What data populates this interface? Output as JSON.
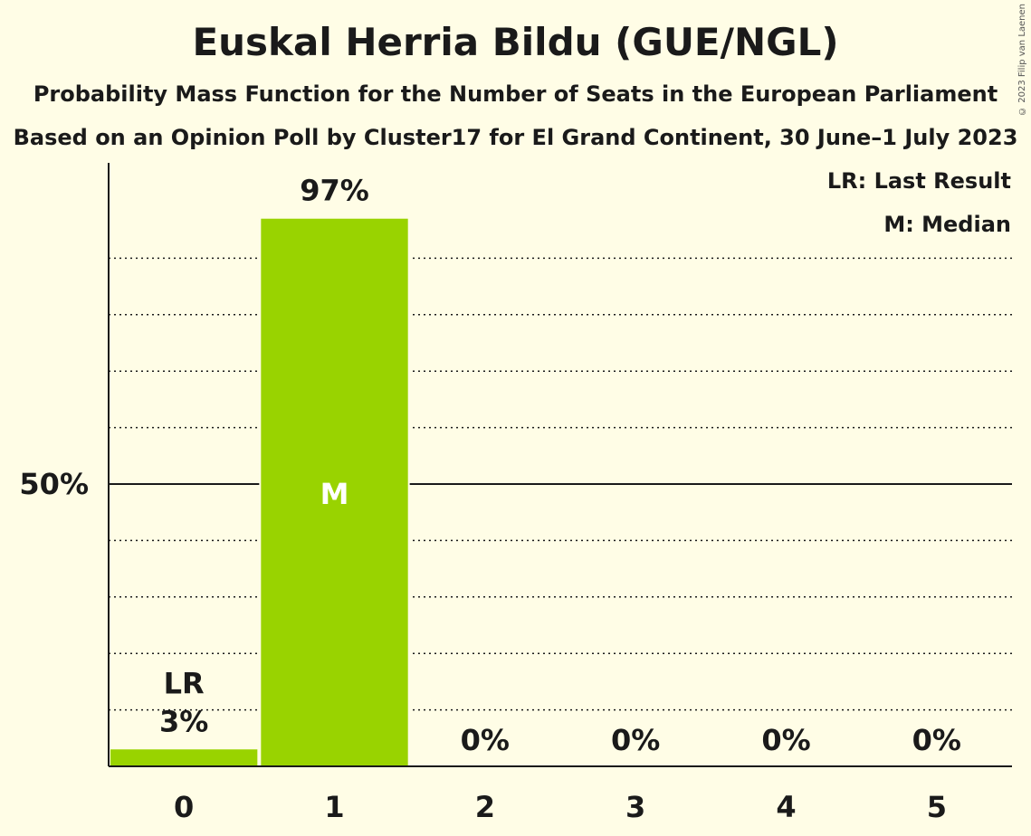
{
  "title": "Euskal Herria Bildu (GUE/NGL)",
  "subtitle": "Probability Mass Function for the Number of Seats in the European Parliament",
  "source": "Based on an Opinion Poll by Cluster17 for El Grand Continent, 30 June–1 July 2023",
  "copyright": "© 2023 Filip van Laenen",
  "legend": {
    "lr": "LR: Last Result",
    "m": "M: Median"
  },
  "colors": {
    "bar": "#99d300",
    "background": "#fffde6",
    "axis": "#1a1a1a"
  },
  "chart_data": {
    "type": "bar",
    "categories": [
      "0",
      "1",
      "2",
      "3",
      "4",
      "5"
    ],
    "values": [
      3,
      97,
      0,
      0,
      0,
      0
    ],
    "value_labels": [
      "3%",
      "97%",
      "0%",
      "0%",
      "0%",
      "0%"
    ],
    "ylim": [
      0,
      100
    ],
    "y_tick_label": "50%",
    "y_tick_value": 50,
    "minor_gridlines": [
      10,
      20,
      30,
      40,
      60,
      70,
      80,
      90
    ],
    "last_result_index": 0,
    "last_result_label": "LR",
    "median_index": 1,
    "median_label": "M"
  }
}
